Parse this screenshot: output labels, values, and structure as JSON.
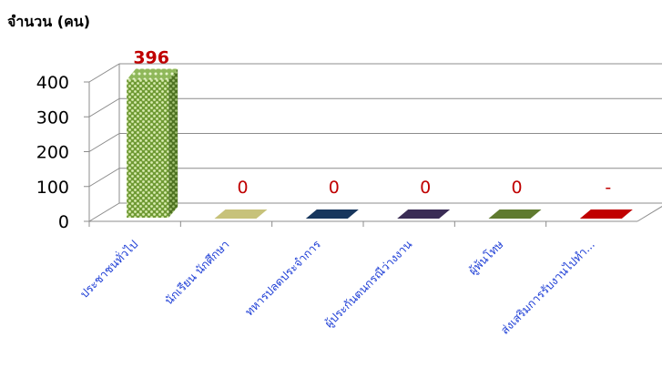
{
  "chart_data": {
    "type": "bar",
    "ylabel": "จำนวน (คน)",
    "ylim": [
      0,
      400
    ],
    "yticks": [
      "0",
      "100",
      "200",
      "300",
      "400"
    ],
    "grid": true,
    "categories": [
      "ประชาชนทั่วไป",
      "นักเรียน นักศึกษา",
      "ทหารปลดประจำการ",
      "ผู้ประกันตนกรณีว่างงาน",
      "ผู้พ้นโทษ",
      "ส่งเสริมการรับงานไปทำ..."
    ],
    "values": [
      396,
      0,
      0,
      0,
      0,
      0
    ],
    "data_labels": [
      "396",
      "0",
      "0",
      "0",
      "0",
      "-"
    ],
    "colors": [
      "#8db04a",
      "#c7c27a",
      "#17365d",
      "#3a2c55",
      "#5f7a2f",
      "#c00000"
    ],
    "label_colors": [
      "#c00000",
      "#c00000",
      "#c00000",
      "#c00000",
      "#c00000",
      "#c00000"
    ]
  }
}
